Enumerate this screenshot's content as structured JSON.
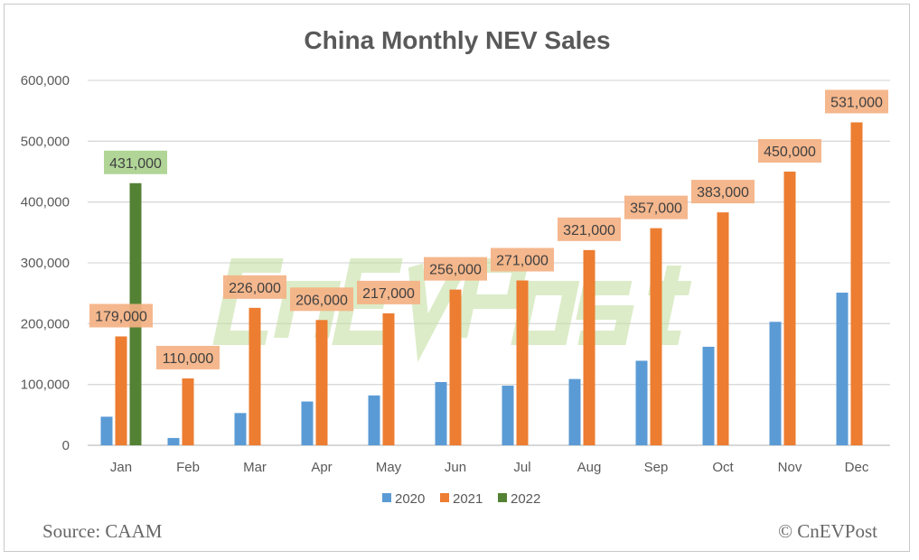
{
  "chart_data": {
    "type": "bar",
    "title": "China Monthly NEV Sales",
    "categories": [
      "Jan",
      "Feb",
      "Mar",
      "Apr",
      "May",
      "Jun",
      "Jul",
      "Aug",
      "Sep",
      "Oct",
      "Nov",
      "Dec"
    ],
    "series": [
      {
        "name": "2020",
        "color": "#5B9BD5",
        "values": [
          47000,
          12000,
          53000,
          72000,
          82000,
          104000,
          98000,
          109000,
          139000,
          162000,
          203000,
          251000
        ],
        "labels": false
      },
      {
        "name": "2021",
        "color": "#ED7D31",
        "label_fill": "#F4B183",
        "values": [
          179000,
          110000,
          226000,
          206000,
          217000,
          256000,
          271000,
          321000,
          357000,
          383000,
          450000,
          531000
        ],
        "labels": true
      },
      {
        "name": "2022",
        "color": "#548235",
        "label_fill": "#A9D18E",
        "values": [
          431000,
          null,
          null,
          null,
          null,
          null,
          null,
          null,
          null,
          null,
          null,
          null
        ],
        "labels": true
      }
    ],
    "ylim": [
      0,
      600000
    ],
    "yticks": [
      0,
      100000,
      200000,
      300000,
      400000,
      500000,
      600000
    ],
    "ytick_labels": [
      "0",
      "100,000",
      "200,000",
      "300,000",
      "400,000",
      "500,000",
      "600,000"
    ],
    "grid": true,
    "legend": "bottom",
    "watermark": "CnEVPost"
  },
  "footer": {
    "source": "Source: CAAM",
    "credit": "© CnEVPost"
  }
}
